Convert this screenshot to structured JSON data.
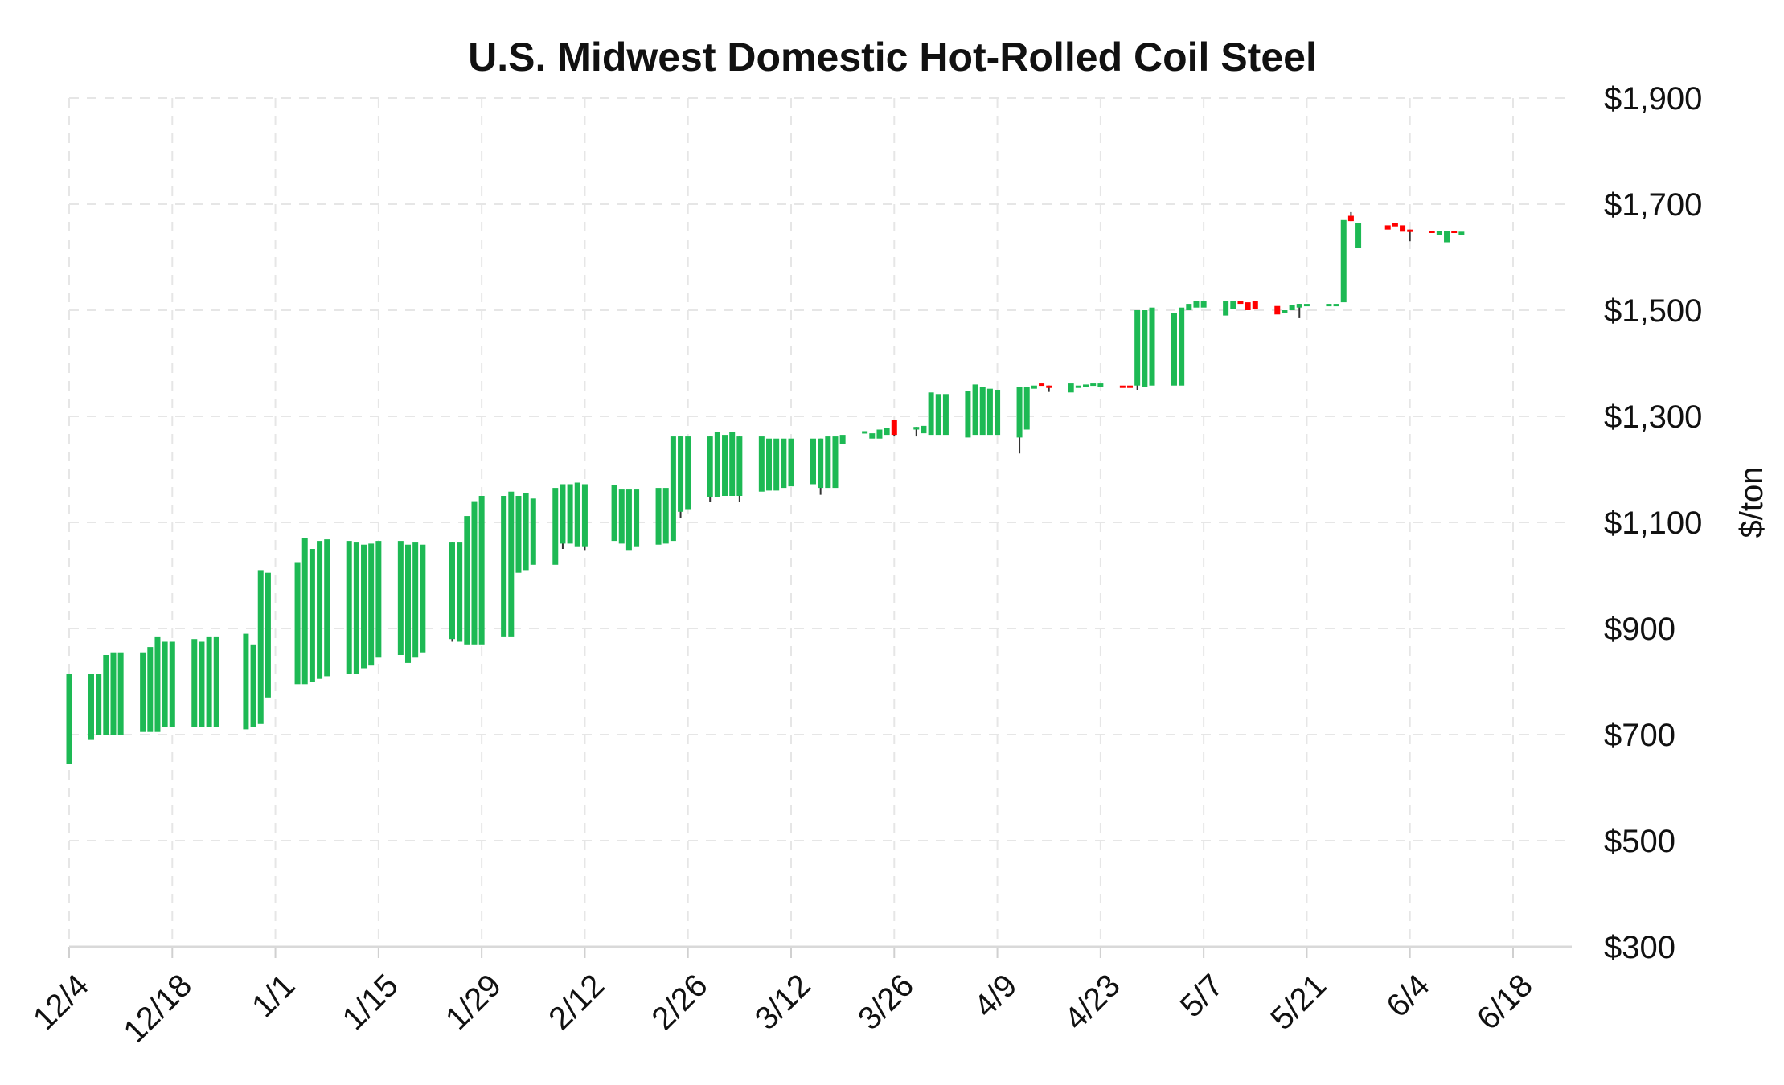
{
  "chart_data": {
    "type": "candlestick",
    "title": "U.S. Midwest Domestic Hot-Rolled Coil Steel",
    "ylabel": "$/ton",
    "xlabel": "",
    "ylim": [
      300,
      1900
    ],
    "y_ticks": [
      300,
      500,
      700,
      900,
      1100,
      1300,
      1500,
      1700,
      1900
    ],
    "y_tick_labels": [
      "$300",
      "$500",
      "$700",
      "$900",
      "$1,100",
      "$1,300",
      "$1,500",
      "$1,700",
      "$1,900"
    ],
    "y_axis_side": "right",
    "x_tick_labels": [
      "12/4",
      "12/18",
      "1/1",
      "1/15",
      "1/29",
      "2/12",
      "2/26",
      "3/12",
      "3/26",
      "4/9",
      "4/23",
      "5/7",
      "5/21",
      "6/4",
      "6/18"
    ],
    "x_tick_days": [
      0,
      14,
      28,
      42,
      56,
      70,
      84,
      98,
      112,
      126,
      140,
      154,
      168,
      182,
      196
    ],
    "x_unit": "days after 12/4",
    "grid": true,
    "colors": {
      "up": "#1db954",
      "down": "#ff0000",
      "wick": "#333333"
    },
    "candles": [
      {
        "day": 0,
        "open": 645,
        "close": 815
      },
      {
        "day": 3,
        "open": 690,
        "close": 815
      },
      {
        "day": 4,
        "open": 700,
        "close": 815
      },
      {
        "day": 5,
        "open": 700,
        "close": 850
      },
      {
        "day": 6,
        "open": 700,
        "close": 855
      },
      {
        "day": 7,
        "open": 700,
        "close": 855
      },
      {
        "day": 10,
        "open": 705,
        "close": 855
      },
      {
        "day": 11,
        "open": 705,
        "close": 865
      },
      {
        "day": 12,
        "open": 705,
        "close": 885
      },
      {
        "day": 13,
        "open": 715,
        "close": 875
      },
      {
        "day": 14,
        "open": 715,
        "close": 875
      },
      {
        "day": 17,
        "open": 715,
        "close": 880
      },
      {
        "day": 18,
        "open": 715,
        "close": 875
      },
      {
        "day": 19,
        "open": 715,
        "close": 885
      },
      {
        "day": 20,
        "open": 715,
        "close": 885
      },
      {
        "day": 24,
        "open": 710,
        "close": 890
      },
      {
        "day": 25,
        "open": 715,
        "close": 870
      },
      {
        "day": 26,
        "open": 720,
        "close": 1010
      },
      {
        "day": 27,
        "open": 770,
        "close": 1005
      },
      {
        "day": 31,
        "open": 795,
        "close": 1025
      },
      {
        "day": 32,
        "open": 795,
        "close": 1070
      },
      {
        "day": 33,
        "open": 800,
        "close": 1050
      },
      {
        "day": 34,
        "open": 805,
        "close": 1065
      },
      {
        "day": 35,
        "open": 810,
        "close": 1068
      },
      {
        "day": 38,
        "open": 815,
        "close": 1065
      },
      {
        "day": 39,
        "open": 815,
        "close": 1062
      },
      {
        "day": 40,
        "open": 825,
        "close": 1058
      },
      {
        "day": 41,
        "open": 830,
        "close": 1060
      },
      {
        "day": 42,
        "open": 845,
        "close": 1065
      },
      {
        "day": 45,
        "open": 850,
        "close": 1065
      },
      {
        "day": 46,
        "open": 835,
        "close": 1058
      },
      {
        "day": 47,
        "open": 845,
        "close": 1062
      },
      {
        "day": 48,
        "open": 855,
        "close": 1058
      },
      {
        "day": 52,
        "open": 880,
        "close": 1062,
        "low": 875
      },
      {
        "day": 53,
        "open": 875,
        "close": 1062
      },
      {
        "day": 54,
        "open": 870,
        "close": 1112
      },
      {
        "day": 55,
        "open": 870,
        "close": 1140
      },
      {
        "day": 56,
        "open": 870,
        "close": 1150
      },
      {
        "day": 59,
        "open": 885,
        "close": 1150
      },
      {
        "day": 60,
        "open": 885,
        "close": 1158
      },
      {
        "day": 61,
        "open": 1005,
        "close": 1150
      },
      {
        "day": 62,
        "open": 1010,
        "close": 1155
      },
      {
        "day": 63,
        "open": 1020,
        "close": 1145
      },
      {
        "day": 66,
        "open": 1020,
        "close": 1165
      },
      {
        "day": 67,
        "open": 1060,
        "close": 1172,
        "low": 1050
      },
      {
        "day": 68,
        "open": 1060,
        "close": 1172
      },
      {
        "day": 69,
        "open": 1055,
        "close": 1175
      },
      {
        "day": 70,
        "open": 1055,
        "close": 1172,
        "low": 1048
      },
      {
        "day": 74,
        "open": 1065,
        "close": 1170
      },
      {
        "day": 75,
        "open": 1060,
        "close": 1162
      },
      {
        "day": 76,
        "open": 1048,
        "close": 1162
      },
      {
        "day": 77,
        "open": 1055,
        "close": 1162
      },
      {
        "day": 80,
        "open": 1058,
        "close": 1165
      },
      {
        "day": 81,
        "open": 1060,
        "close": 1165
      },
      {
        "day": 82,
        "open": 1065,
        "close": 1262
      },
      {
        "day": 83,
        "open": 1120,
        "close": 1262,
        "low": 1108
      },
      {
        "day": 84,
        "open": 1125,
        "close": 1262
      },
      {
        "day": 87,
        "open": 1148,
        "close": 1262,
        "low": 1138
      },
      {
        "day": 88,
        "open": 1148,
        "close": 1270
      },
      {
        "day": 89,
        "open": 1150,
        "close": 1265
      },
      {
        "day": 90,
        "open": 1150,
        "close": 1270
      },
      {
        "day": 91,
        "open": 1150,
        "close": 1262,
        "low": 1138
      },
      {
        "day": 94,
        "open": 1158,
        "close": 1262
      },
      {
        "day": 95,
        "open": 1160,
        "close": 1258
      },
      {
        "day": 96,
        "open": 1160,
        "close": 1258
      },
      {
        "day": 97,
        "open": 1165,
        "close": 1258
      },
      {
        "day": 98,
        "open": 1168,
        "close": 1258
      },
      {
        "day": 101,
        "open": 1172,
        "close": 1258
      },
      {
        "day": 102,
        "open": 1165,
        "close": 1258,
        "low": 1152
      },
      {
        "day": 103,
        "open": 1165,
        "close": 1262
      },
      {
        "day": 104,
        "open": 1165,
        "close": 1262
      },
      {
        "day": 105,
        "open": 1248,
        "close": 1265
      },
      {
        "day": 108,
        "open": 1268,
        "close": 1272
      },
      {
        "day": 109,
        "open": 1258,
        "close": 1268
      },
      {
        "day": 110,
        "open": 1258,
        "close": 1275
      },
      {
        "day": 111,
        "open": 1265,
        "close": 1278
      },
      {
        "day": 112,
        "open": 1293,
        "close": 1265,
        "low": 1262
      },
      {
        "day": 115,
        "open": 1275,
        "close": 1280,
        "low": 1262
      },
      {
        "day": 116,
        "open": 1268,
        "close": 1282
      },
      {
        "day": 117,
        "open": 1265,
        "close": 1345
      },
      {
        "day": 118,
        "open": 1265,
        "close": 1342
      },
      {
        "day": 119,
        "open": 1265,
        "close": 1342
      },
      {
        "day": 122,
        "open": 1260,
        "close": 1348
      },
      {
        "day": 123,
        "open": 1265,
        "close": 1360
      },
      {
        "day": 124,
        "open": 1265,
        "close": 1355
      },
      {
        "day": 125,
        "open": 1265,
        "close": 1352
      },
      {
        "day": 126,
        "open": 1265,
        "close": 1350
      },
      {
        "day": 129,
        "open": 1260,
        "close": 1355,
        "low": 1230
      },
      {
        "day": 130,
        "open": 1275,
        "close": 1355
      },
      {
        "day": 131,
        "open": 1352,
        "close": 1358
      },
      {
        "day": 132,
        "open": 1362,
        "close": 1358
      },
      {
        "day": 133,
        "open": 1358,
        "close": 1355,
        "low": 1346
      },
      {
        "day": 136,
        "open": 1345,
        "close": 1362
      },
      {
        "day": 137,
        "open": 1355,
        "close": 1358
      },
      {
        "day": 138,
        "open": 1356,
        "close": 1360
      },
      {
        "day": 139,
        "open": 1358,
        "close": 1362
      },
      {
        "day": 140,
        "open": 1355,
        "close": 1362
      },
      {
        "day": 143,
        "open": 1358,
        "close": 1356
      },
      {
        "day": 144,
        "open": 1358,
        "close": 1357
      },
      {
        "day": 145,
        "open": 1358,
        "close": 1500,
        "low": 1350
      },
      {
        "day": 146,
        "open": 1355,
        "close": 1500
      },
      {
        "day": 147,
        "open": 1358,
        "close": 1505
      },
      {
        "day": 150,
        "open": 1358,
        "close": 1495
      },
      {
        "day": 151,
        "open": 1358,
        "close": 1505
      },
      {
        "day": 152,
        "open": 1500,
        "close": 1512
      },
      {
        "day": 153,
        "open": 1505,
        "close": 1518
      },
      {
        "day": 154,
        "open": 1505,
        "close": 1518
      },
      {
        "day": 157,
        "open": 1490,
        "close": 1518
      },
      {
        "day": 158,
        "open": 1502,
        "close": 1518
      },
      {
        "day": 159,
        "open": 1518,
        "close": 1512
      },
      {
        "day": 160,
        "open": 1515,
        "close": 1500
      },
      {
        "day": 161,
        "open": 1518,
        "close": 1502
      },
      {
        "day": 164,
        "open": 1508,
        "close": 1492
      },
      {
        "day": 165,
        "open": 1495,
        "close": 1500
      },
      {
        "day": 166,
        "open": 1500,
        "close": 1510
      },
      {
        "day": 167,
        "open": 1505,
        "close": 1512,
        "low": 1485
      },
      {
        "day": 168,
        "open": 1508,
        "close": 1512
      },
      {
        "day": 171,
        "open": 1510,
        "close": 1512
      },
      {
        "day": 172,
        "open": 1510,
        "close": 1512
      },
      {
        "day": 173,
        "open": 1515,
        "close": 1670
      },
      {
        "day": 174,
        "open": 1678,
        "close": 1668,
        "high": 1685
      },
      {
        "day": 175,
        "open": 1618,
        "close": 1665
      },
      {
        "day": 179,
        "open": 1660,
        "close": 1652
      },
      {
        "day": 180,
        "open": 1665,
        "close": 1658
      },
      {
        "day": 181,
        "open": 1660,
        "close": 1648
      },
      {
        "day": 182,
        "open": 1652,
        "close": 1648,
        "low": 1630
      },
      {
        "day": 185,
        "open": 1650,
        "close": 1648
      },
      {
        "day": 186,
        "open": 1642,
        "close": 1650
      },
      {
        "day": 187,
        "open": 1628,
        "close": 1650
      },
      {
        "day": 188,
        "open": 1650,
        "close": 1648
      },
      {
        "day": 189,
        "open": 1642,
        "close": 1648
      }
    ]
  }
}
